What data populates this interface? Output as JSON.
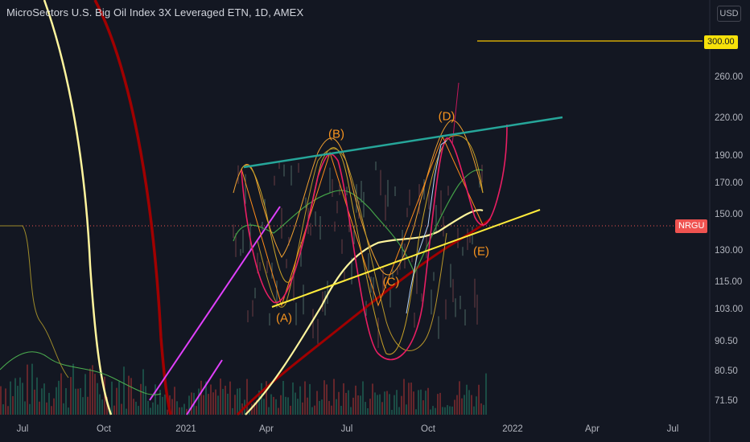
{
  "header": {
    "title": "MicroSectors U.S. Big Oil Index 3X Leveraged ETN, 1D, AMEX",
    "currency": "USD"
  },
  "badges": {
    "price_300": "300.00",
    "symbol": "NRGU"
  },
  "wave_labels": [
    "(A)",
    "(B)",
    "(C)",
    "(D)",
    "(E)"
  ],
  "colors": {
    "background": "#131722",
    "teal_trendline": "#26a69a",
    "yellow_trendline": "#ffeb3b",
    "magenta": "#e91e63",
    "dark_red": "#b71c1c",
    "orange": "#f7931e",
    "volume_red": "#7a2a2e",
    "volume_green": "#1e5a4f"
  },
  "chart_data": {
    "type": "line",
    "log_scale": true,
    "y_ticks": [
      "300.00",
      "260.00",
      "220.00",
      "190.00",
      "170.00",
      "150.00",
      "130.00",
      "115.00",
      "103.00",
      "90.50",
      "80.50",
      "71.50"
    ],
    "x_ticks": [
      "Jul",
      "Oct",
      "2021",
      "Apr",
      "Jul",
      "Oct",
      "2022",
      "Apr",
      "Jul"
    ],
    "horizontal_level": 300,
    "wave_points": [
      {
        "label": "(A)",
        "date": "2021-04",
        "price": 104
      },
      {
        "label": "(B)",
        "date": "2021-06",
        "price": 193
      },
      {
        "label": "(C)",
        "date": "2021-08",
        "price": 87
      },
      {
        "label": "(D)",
        "date": "2021-10",
        "price": 207
      },
      {
        "label": "(E)",
        "date": "2021-12",
        "price": 143
      }
    ],
    "current_price": 146,
    "grid": false
  }
}
